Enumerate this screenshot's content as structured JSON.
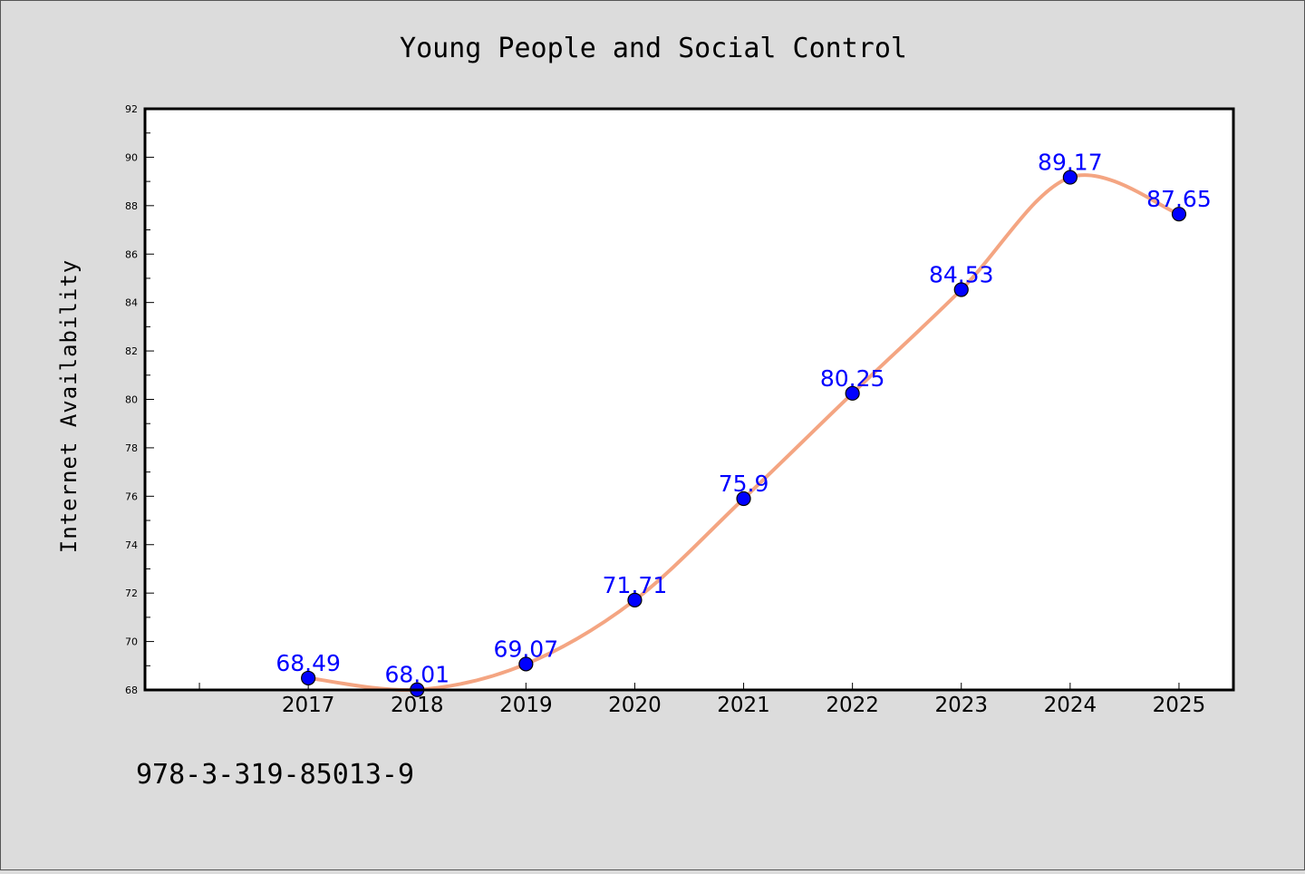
{
  "chart_data": {
    "type": "line",
    "title": "Young People and Social Control",
    "xlabel": "",
    "ylabel": "Internet Availability",
    "categories": [
      "2017",
      "2018",
      "2019",
      "2020",
      "2021",
      "2022",
      "2023",
      "2024",
      "2025"
    ],
    "values": [
      68.49,
      68.01,
      69.07,
      71.71,
      75.9,
      80.25,
      84.53,
      89.17,
      87.65
    ],
    "data_labels": [
      "68.49",
      "68.01",
      "69.07",
      "71.71",
      "75.9",
      "80.25",
      "84.53",
      "89.17",
      "87.65"
    ],
    "ylim": [
      68,
      92
    ],
    "y_major_ticks": [
      68,
      70,
      72,
      74,
      76,
      78,
      80,
      82,
      84,
      86,
      88,
      90,
      92
    ],
    "x_range": [
      2015.5,
      2025.5
    ],
    "grid": false,
    "line_color": "#f4a582",
    "marker_color": "#0000ff",
    "label_color": "#0000ff",
    "background_color": "#dcdcdc",
    "plot_background_color": "#ffffff"
  },
  "footer": {
    "isbn": "978-3-319-85013-9"
  }
}
